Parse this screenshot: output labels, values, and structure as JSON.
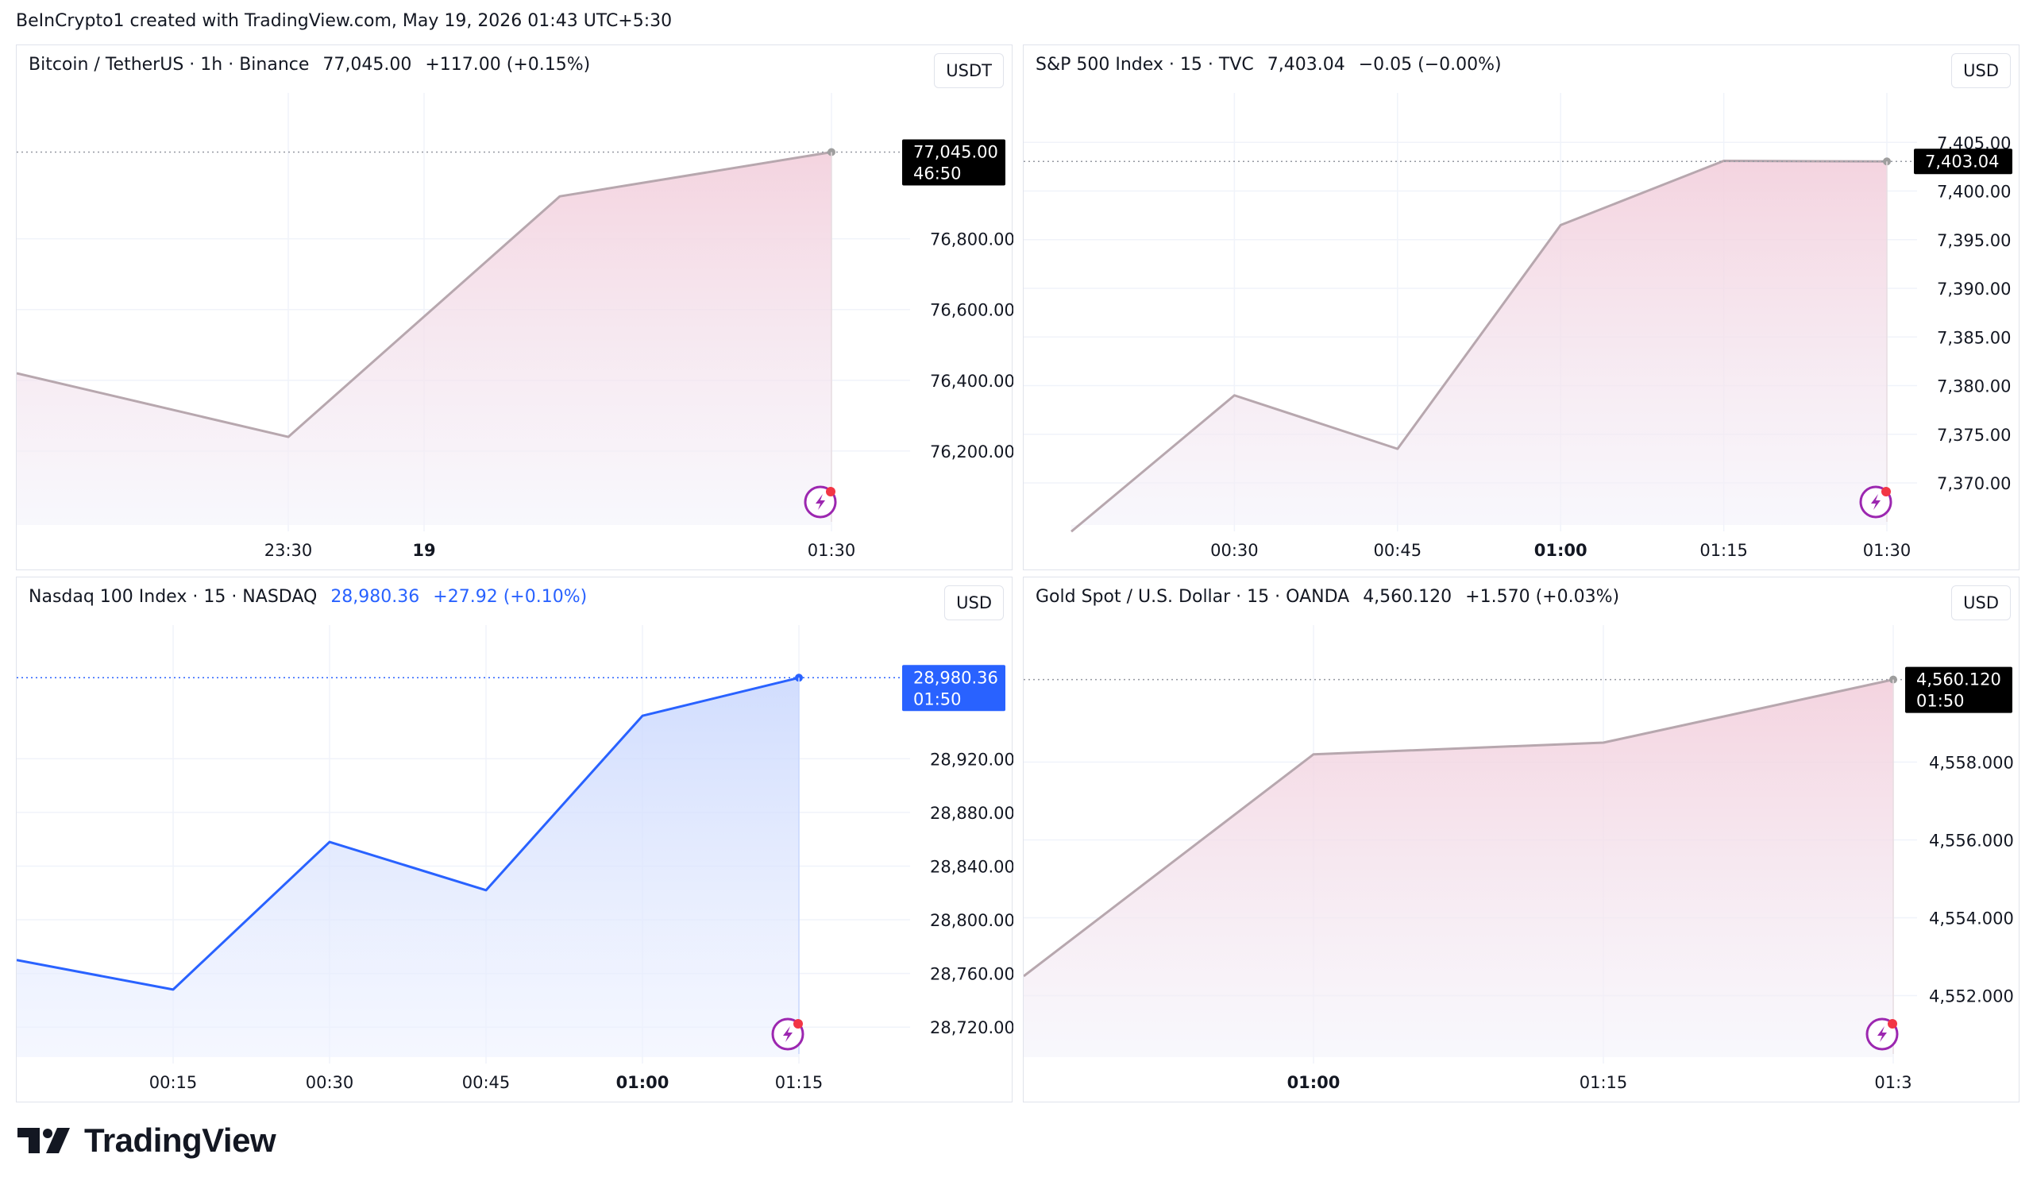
{
  "header": {
    "text": "BeInCrypto1 created with TradingView.com, May 19, 2026 01:43 UTC+5:30"
  },
  "footer": {
    "brand": "TradingView"
  },
  "colors": {
    "line_default": "#b7a7ae",
    "line_active": "#2962ff",
    "grid": "#f0f3fa",
    "badge_dark": "#000000",
    "badge_active": "#2962ff",
    "fill_pink": "#f3cfdc",
    "fill_blue": "#c9d7fd",
    "event_icon": "#9c27b0",
    "event_dot": "#f23645"
  },
  "panels": [
    {
      "legend": {
        "symbol": "Bitcoin / TetherUS · 1h · Binance",
        "price": "77,045.00",
        "change": "+117.00 (+0.15%)"
      },
      "currency": "USDT",
      "badge": {
        "price": "77,045.00",
        "countdown": "46:50"
      }
    },
    {
      "legend": {
        "symbol": "S&P 500 Index · 15 · TVC",
        "price": "7,403.04",
        "change": "−0.05 (−0.00%)"
      },
      "currency": "USD",
      "badge": {
        "price": "7,403.04",
        "countdown": ""
      }
    },
    {
      "legend": {
        "symbol": "Nasdaq 100 Index · 15 · NASDAQ",
        "price": "28,980.36",
        "change": "+27.92 (+0.10%)"
      },
      "currency": "USD",
      "badge": {
        "price": "28,980.36",
        "countdown": "01:50"
      }
    },
    {
      "legend": {
        "symbol": "Gold Spot / U.S. Dollar · 15 · OANDA",
        "price": "4,560.120",
        "change": "+1.570 (+0.03%)"
      },
      "currency": "USD",
      "badge": {
        "price": "4,560.120",
        "countdown": "01:50"
      }
    }
  ],
  "chart_data": [
    {
      "type": "area",
      "title": "Bitcoin / TetherUS · 1h · Binance",
      "x_ticks": [
        "23:30",
        "19",
        "01:30"
      ],
      "y_ticks": [
        "76,200.00",
        "76,400.00",
        "76,600.00",
        "76,800.00"
      ],
      "ylim": [
        76000,
        77100
      ],
      "x": [
        "22:30",
        "23:30",
        "00:30",
        "01:30"
      ],
      "values": [
        76420,
        76240,
        76920,
        77045
      ],
      "last": 77045.0,
      "grid": true
    },
    {
      "type": "area",
      "title": "S&P 500 Index · 15 · TVC",
      "x_ticks": [
        "00:30",
        "00:45",
        "01:00",
        "01:15",
        "01:30"
      ],
      "y_ticks": [
        "7,370.00",
        "7,375.00",
        "7,380.00",
        "7,385.00",
        "7,390.00",
        "7,395.00",
        "7,400.00",
        "7,405.00"
      ],
      "ylim": [
        7366,
        7406
      ],
      "x": [
        "00:15",
        "00:30",
        "00:45",
        "01:00",
        "01:15",
        "01:30"
      ],
      "values": [
        7365,
        7379,
        7373.5,
        7396.5,
        7403.1,
        7403.04
      ],
      "last": 7403.04,
      "grid": true
    },
    {
      "type": "area",
      "title": "Nasdaq 100 Index · 15 · NASDAQ",
      "x_ticks": [
        "00:15",
        "00:30",
        "00:45",
        "01:00",
        "01:15"
      ],
      "y_ticks": [
        "28,720.00",
        "28,760.00",
        "28,800.00",
        "28,840.00",
        "28,880.00",
        "28,920.00"
      ],
      "ylim": [
        28700,
        28990
      ],
      "x": [
        "00:00",
        "00:15",
        "00:30",
        "00:45",
        "01:00",
        "01:15"
      ],
      "values": [
        28770,
        28748,
        28858,
        28822,
        28952,
        28980.36
      ],
      "last": 28980.36,
      "grid": true
    },
    {
      "type": "area",
      "title": "Gold Spot / U.S. Dollar · 15 · OANDA",
      "x_ticks": [
        "01:00",
        "01:15",
        "01:3"
      ],
      "y_ticks": [
        "4,552.000",
        "4,554.000",
        "4,556.000",
        "4,558.000"
      ],
      "ylim": [
        4550.5,
        4560.5
      ],
      "x": [
        "00:45",
        "01:00",
        "01:15",
        "01:30"
      ],
      "values": [
        4552.5,
        4558.2,
        4558.5,
        4560.12
      ],
      "last": 4560.12,
      "grid": true
    }
  ]
}
